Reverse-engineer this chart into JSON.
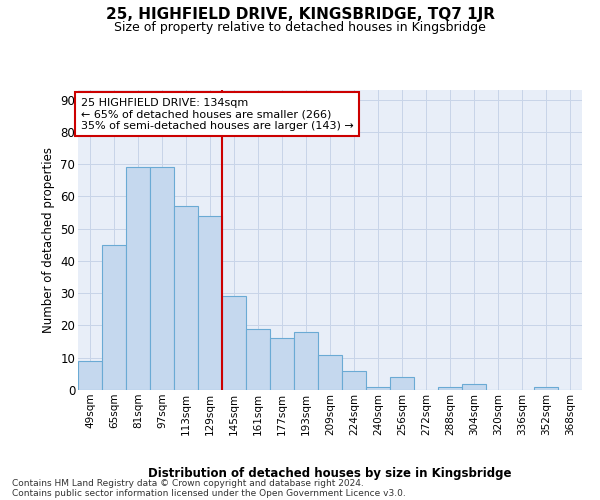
{
  "title1": "25, HIGHFIELD DRIVE, KINGSBRIDGE, TQ7 1JR",
  "title2": "Size of property relative to detached houses in Kingsbridge",
  "xlabel": "Distribution of detached houses by size in Kingsbridge",
  "ylabel": "Number of detached properties",
  "categories": [
    "49sqm",
    "65sqm",
    "81sqm",
    "97sqm",
    "113sqm",
    "129sqm",
    "145sqm",
    "161sqm",
    "177sqm",
    "193sqm",
    "209sqm",
    "224sqm",
    "240sqm",
    "256sqm",
    "272sqm",
    "288sqm",
    "304sqm",
    "320sqm",
    "336sqm",
    "352sqm",
    "368sqm"
  ],
  "bar_values": [
    9,
    45,
    69,
    69,
    57,
    54,
    29,
    19,
    16,
    18,
    11,
    6,
    1,
    4,
    0,
    1,
    2,
    0,
    0,
    1,
    0
  ],
  "bar_color": "#c5d8ee",
  "bar_edge_color": "#6aaad4",
  "vline_color": "#cc0000",
  "vline_index": 6,
  "annotation_line1": "25 HIGHFIELD DRIVE: 134sqm",
  "annotation_line2": "← 65% of detached houses are smaller (266)",
  "annotation_line3": "35% of semi-detached houses are larger (143) →",
  "annotation_box_facecolor": "#ffffff",
  "annotation_box_edgecolor": "#cc0000",
  "ylim_max": 93,
  "yticks": [
    0,
    10,
    20,
    30,
    40,
    50,
    60,
    70,
    80,
    90
  ],
  "grid_color": "#c8d4e8",
  "plot_bg_color": "#e8eef8",
  "title1_fontsize": 11,
  "title2_fontsize": 9,
  "footer1": "Contains HM Land Registry data © Crown copyright and database right 2024.",
  "footer2": "Contains public sector information licensed under the Open Government Licence v3.0."
}
